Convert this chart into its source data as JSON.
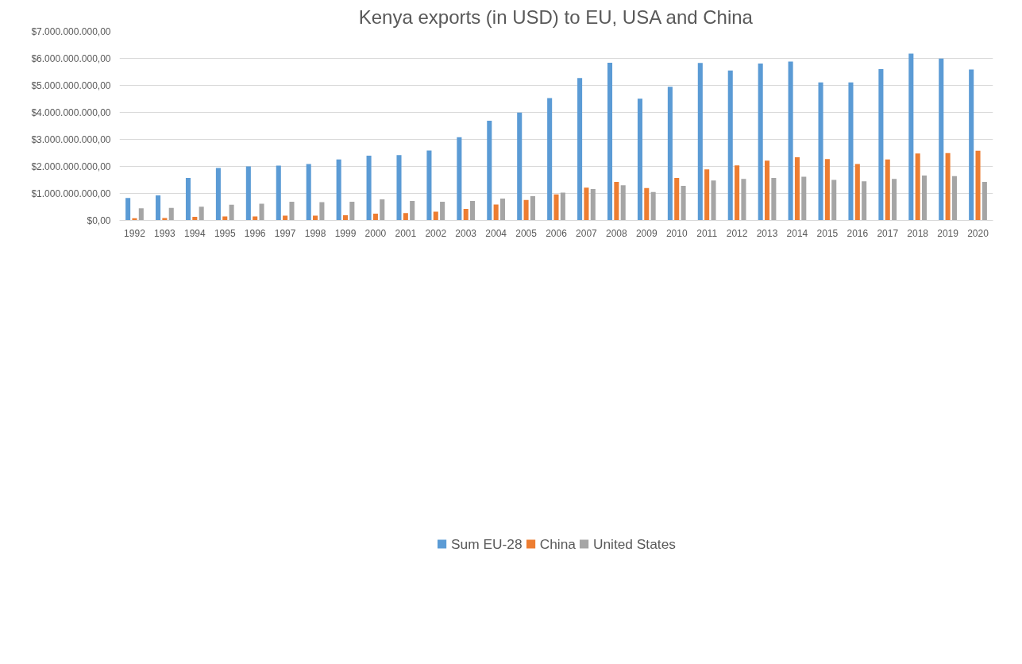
{
  "chart_data": {
    "type": "bar",
    "title": "Kenya exports (in USD) to EU, USA and China",
    "categories": [
      "1992",
      "1993",
      "1994",
      "1995",
      "1996",
      "1997",
      "1998",
      "1999",
      "2000",
      "2001",
      "2002",
      "2003",
      "2004",
      "2005",
      "2006",
      "2007",
      "2008",
      "2009",
      "2010",
      "2011",
      "2012",
      "2013",
      "2014",
      "2015",
      "2016",
      "2017",
      "2018",
      "2019",
      "2020"
    ],
    "series": [
      {
        "name": "Sum EU-28",
        "color": "#5b9bd5",
        "values": [
          830000000,
          930000000,
          1570000000,
          1940000000,
          2000000000,
          2030000000,
          2090000000,
          2260000000,
          2400000000,
          2420000000,
          2590000000,
          3080000000,
          3690000000,
          3990000000,
          4530000000,
          5270000000,
          5840000000,
          4510000000,
          4950000000,
          5830000000,
          5550000000,
          5810000000,
          5880000000,
          5110000000,
          5110000000,
          5600000000,
          6180000000,
          5990000000,
          5590000000
        ]
      },
      {
        "name": "China",
        "color": "#ed7d31",
        "values": [
          80000000,
          90000000,
          130000000,
          150000000,
          150000000,
          180000000,
          180000000,
          190000000,
          250000000,
          270000000,
          320000000,
          430000000,
          590000000,
          760000000,
          960000000,
          1210000000,
          1430000000,
          1200000000,
          1570000000,
          1890000000,
          2040000000,
          2210000000,
          2340000000,
          2270000000,
          2090000000,
          2260000000,
          2480000000,
          2490000000,
          2580000000
        ]
      },
      {
        "name": "United States",
        "color": "#a5a5a5",
        "values": [
          450000000,
          460000000,
          510000000,
          580000000,
          620000000,
          690000000,
          680000000,
          690000000,
          780000000,
          720000000,
          690000000,
          720000000,
          810000000,
          900000000,
          1030000000,
          1160000000,
          1300000000,
          1050000000,
          1280000000,
          1480000000,
          1540000000,
          1570000000,
          1620000000,
          1500000000,
          1450000000,
          1540000000,
          1660000000,
          1640000000,
          1430000000
        ]
      }
    ],
    "ylim": [
      0,
      7000000000
    ],
    "yticks": [
      {
        "value": 0,
        "label": "$0,00"
      },
      {
        "value": 1000000000,
        "label": "$1.000.000.000,00"
      },
      {
        "value": 2000000000,
        "label": "$2.000.000.000,00"
      },
      {
        "value": 3000000000,
        "label": "$3.000.000.000,00"
      },
      {
        "value": 4000000000,
        "label": "$4.000.000.000,00"
      },
      {
        "value": 5000000000,
        "label": "$5.000.000.000,00"
      },
      {
        "value": 6000000000,
        "label": "$6.000.000.000,00"
      },
      {
        "value": 7000000000,
        "label": "$7.000.000.000,00"
      }
    ],
    "grid": "y",
    "legend": "bottom"
  }
}
